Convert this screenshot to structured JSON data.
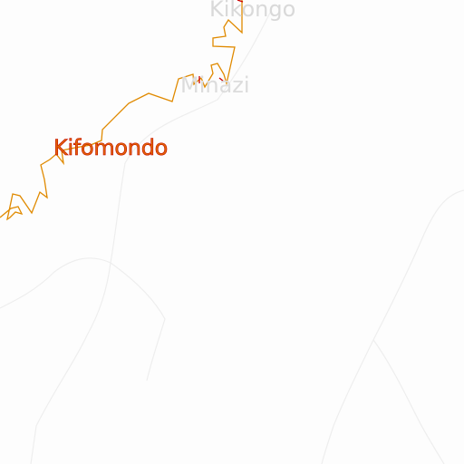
{
  "map": {
    "places": {
      "kikongo": "Kikongo",
      "minazi": "Minazi",
      "kifomondo": "Kifomondo"
    },
    "colors": {
      "background": "#fdfdfd",
      "boundary": "#e08a00",
      "boundary_accent": "#cc0000",
      "road": "#eeeeee",
      "minor_label": "#d9d9d9",
      "major_label": "#e06a00"
    }
  }
}
